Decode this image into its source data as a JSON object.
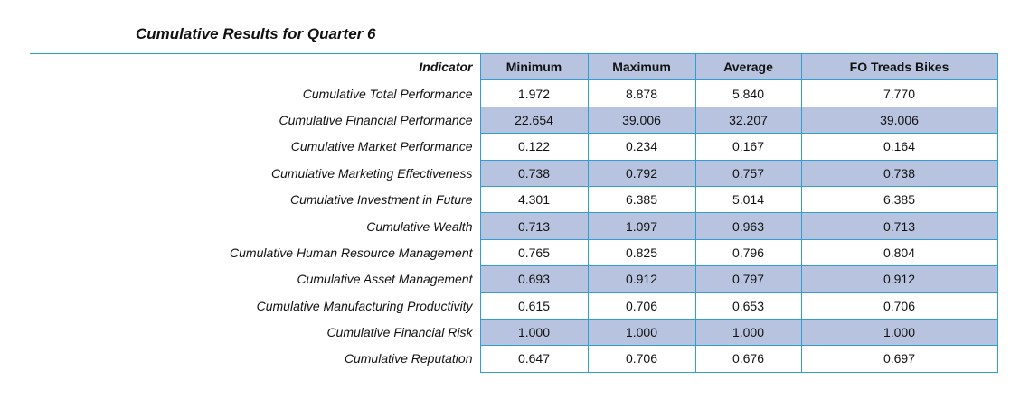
{
  "title": "Cumulative Results for Quarter 6",
  "colors": {
    "header_fill": "#b8c4df",
    "shaded_row_fill": "#b8c4df",
    "grid_border": "#2f9fd1",
    "title_rule": "#2aa5a5"
  },
  "table": {
    "columns": [
      "Indicator",
      "Minimum",
      "Maximum",
      "Average",
      "FO Treads Bikes"
    ],
    "rows": [
      {
        "indicator": "Cumulative Total Performance",
        "minimum": "1.972",
        "maximum": "8.878",
        "average": "5.840",
        "company": "7.770"
      },
      {
        "indicator": "Cumulative Financial Performance",
        "minimum": "22.654",
        "maximum": "39.006",
        "average": "32.207",
        "company": "39.006"
      },
      {
        "indicator": "Cumulative Market Performance",
        "minimum": "0.122",
        "maximum": "0.234",
        "average": "0.167",
        "company": "0.164"
      },
      {
        "indicator": "Cumulative Marketing Effectiveness",
        "minimum": "0.738",
        "maximum": "0.792",
        "average": "0.757",
        "company": "0.738"
      },
      {
        "indicator": "Cumulative Investment in Future",
        "minimum": "4.301",
        "maximum": "6.385",
        "average": "5.014",
        "company": "6.385"
      },
      {
        "indicator": "Cumulative Wealth",
        "minimum": "0.713",
        "maximum": "1.097",
        "average": "0.963",
        "company": "0.713"
      },
      {
        "indicator": "Cumulative Human Resource Management",
        "minimum": "0.765",
        "maximum": "0.825",
        "average": "0.796",
        "company": "0.804"
      },
      {
        "indicator": "Cumulative Asset Management",
        "minimum": "0.693",
        "maximum": "0.912",
        "average": "0.797",
        "company": "0.912"
      },
      {
        "indicator": "Cumulative Manufacturing Productivity",
        "minimum": "0.615",
        "maximum": "0.706",
        "average": "0.653",
        "company": "0.706"
      },
      {
        "indicator": "Cumulative Financial Risk",
        "minimum": "1.000",
        "maximum": "1.000",
        "average": "1.000",
        "company": "1.000"
      },
      {
        "indicator": "Cumulative Reputation",
        "minimum": "0.647",
        "maximum": "0.706",
        "average": "0.676",
        "company": "0.697"
      }
    ]
  }
}
